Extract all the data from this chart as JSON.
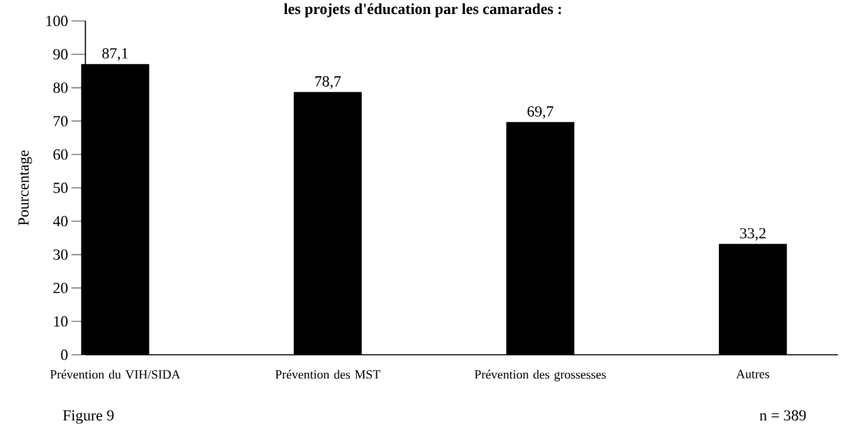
{
  "chart_data": {
    "type": "bar",
    "title": "les projets d'éducation par les camarades :",
    "ylabel": "Pourcentage",
    "categories": [
      "Prévention du VIH/SIDA",
      "Prévention des MST",
      "Prévention des grossesses",
      "Autres"
    ],
    "values": [
      87.1,
      78.7,
      69.7,
      33.2
    ],
    "value_labels": [
      "87,1",
      "78,7",
      "69,7",
      "33,2"
    ],
    "color": "#000000",
    "ylim": [
      0,
      100
    ],
    "yticks": [
      0,
      10,
      20,
      30,
      40,
      50,
      60,
      70,
      80,
      90,
      100
    ],
    "grid": false,
    "annotations": [
      "Figure 9",
      "n = 389"
    ]
  }
}
